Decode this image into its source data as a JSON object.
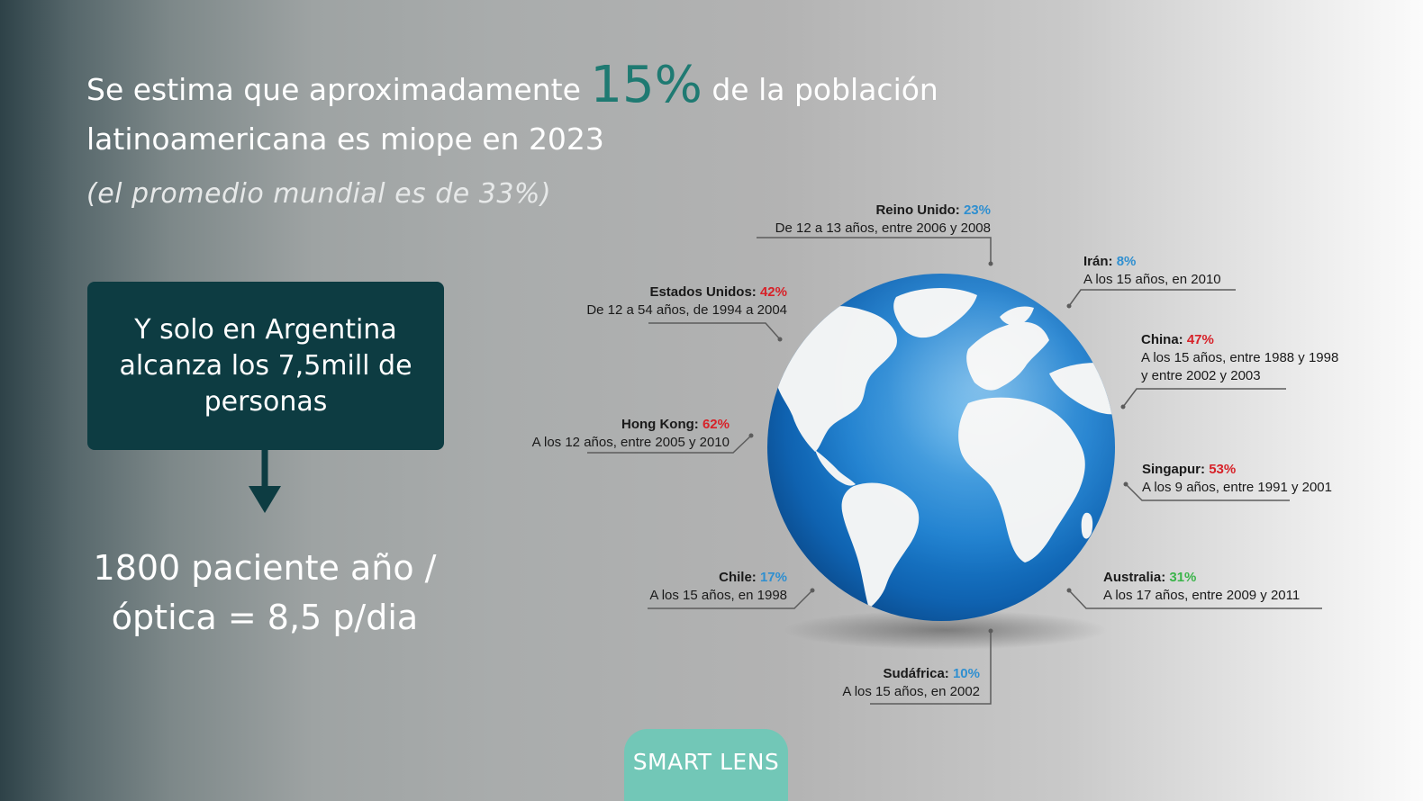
{
  "headline": {
    "before": "Se estima que aproximadamente ",
    "highlight": "15%",
    "after": " de la población latinoamericana es miope en 2023",
    "subtitle": "(el promedio mundial es de 33%)"
  },
  "argentina_box": {
    "text": "Y solo en Argentina alcanza los 7,5mill de personas"
  },
  "stat": {
    "text": "1800 paciente año / óptica = 8,5 p/dia"
  },
  "brand": {
    "label": "SMART LENS"
  },
  "colors": {
    "teal_dark": "#0d3c42",
    "teal_highlight": "#1f7a72",
    "brand_green": "#72c7b7",
    "pct_blue": "#2f8fd0",
    "pct_red": "#d72229",
    "pct_green": "#3bb44a"
  },
  "labels": {
    "reino_unido": {
      "name": "Reino Unido",
      "pct": "23%",
      "detail": "De 12 a 13 años, entre 2006 y 2008",
      "color": "blue"
    },
    "iran": {
      "name": "Irán",
      "pct": "8%",
      "detail": "A los 15 años, en 2010",
      "color": "blue"
    },
    "estados_unidos": {
      "name": "Estados Unidos",
      "pct": "42%",
      "detail": "De 12 a 54 años, de 1994 a 2004",
      "color": "red"
    },
    "china": {
      "name": "China",
      "pct": "47%",
      "detail1": "A los 15 años, entre 1988 y 1998",
      "detail2": "y entre 2002 y 2003",
      "color": "red"
    },
    "hong_kong": {
      "name": "Hong Kong",
      "pct": "62%",
      "detail": "A los 12 años, entre 2005 y 2010",
      "color": "red"
    },
    "singapur": {
      "name": "Singapur",
      "pct": "53%",
      "detail": "A los 9 años, entre 1991 y 2001",
      "color": "red"
    },
    "chile": {
      "name": "Chile",
      "pct": "17%",
      "detail": "A los 15 años, en 1998",
      "color": "blue"
    },
    "australia": {
      "name": "Australia",
      "pct": "31%",
      "detail": "A los 17 años, entre 2009 y 2011",
      "color": "green"
    },
    "sudafrica": {
      "name": "Sudáfrica",
      "pct": "10%",
      "detail": "A los 15 años, en 2002",
      "color": "blue"
    }
  }
}
